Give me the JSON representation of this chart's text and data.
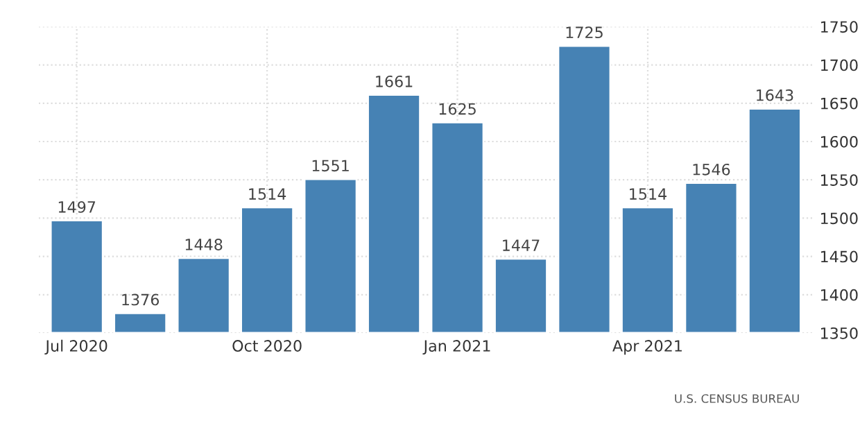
{
  "chart_data": {
    "type": "bar",
    "categories": [
      "Jul 2020",
      null,
      null,
      "Oct 2020",
      null,
      null,
      "Jan 2021",
      null,
      null,
      "Apr 2021",
      null,
      null
    ],
    "values": [
      1497,
      1376,
      1448,
      1514,
      1551,
      1661,
      1625,
      1447,
      1725,
      1514,
      1546,
      1643
    ],
    "color": "#4682b4",
    "ylim": [
      1350,
      1750
    ],
    "yticks": [
      1350,
      1400,
      1450,
      1500,
      1550,
      1600,
      1650,
      1700,
      1750
    ],
    "grid": true,
    "data_labels": true,
    "annotations": [
      "U.S. CENSUS BUREAU"
    ]
  }
}
